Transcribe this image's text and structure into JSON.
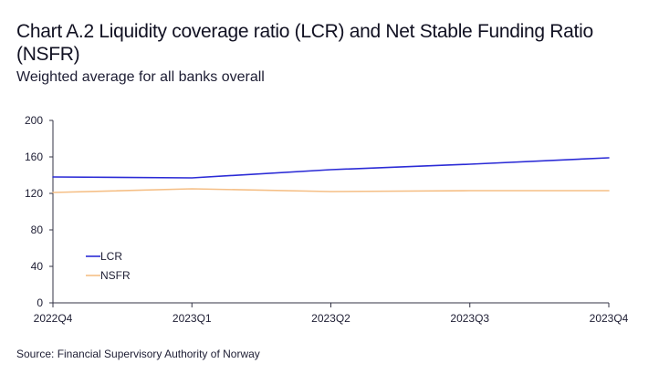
{
  "title": "Chart A.2 Liquidity coverage ratio (LCR) and Net Stable Funding Ratio (NSFR)",
  "subtitle": "Weighted average for all banks overall",
  "source": "Source: Financial Supervisory Authority of Norway",
  "colors": {
    "lcr": "#2b2bd6",
    "nsfr": "#f5bf86",
    "axis": "#333344"
  },
  "chart_data": {
    "type": "line",
    "categories": [
      "2022Q4",
      "2023Q1",
      "2023Q2",
      "2023Q3",
      "2023Q4"
    ],
    "series": [
      {
        "name": "LCR",
        "values": [
          138,
          137,
          146,
          152,
          159
        ]
      },
      {
        "name": "NSFR",
        "values": [
          121,
          125,
          122,
          123,
          123
        ]
      }
    ],
    "ylim": [
      0,
      200
    ],
    "yticks": [
      0,
      40,
      80,
      120,
      160,
      200
    ],
    "xlabel": "",
    "ylabel": "",
    "grid": false,
    "legend": "bottom-left"
  }
}
